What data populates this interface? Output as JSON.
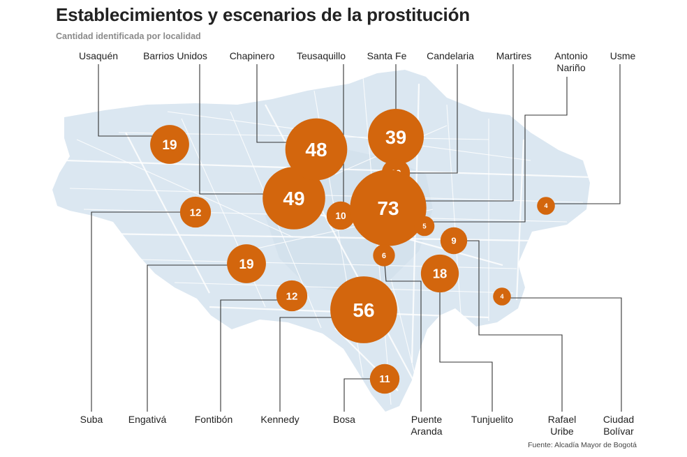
{
  "title": "Establecimientos y escenarios de la prostitución",
  "subtitle": "Cantidad identificada por localidad",
  "source": "Fuente: Alcadía Mayor de Bogotá",
  "colors": {
    "bubble": "#d3660d",
    "map": "#dbe7f1",
    "streets": "#ffffff",
    "leader": "#333333",
    "text": "#222222"
  },
  "chart_data": {
    "type": "bubble-map",
    "title": "Establecimientos y escenarios de la prostitución",
    "subtitle": "Cantidad identificada por localidad",
    "series": [
      {
        "localidad": "Usaquén",
        "value": 19
      },
      {
        "localidad": "Barrios Unidos",
        "value": 49
      },
      {
        "localidad": "Chapinero",
        "value": 48
      },
      {
        "localidad": "Teusaquillo",
        "value": 10
      },
      {
        "localidad": "Santa Fe",
        "value": 39
      },
      {
        "localidad": "Candelaria",
        "value": 10
      },
      {
        "localidad": "Martires",
        "value": 73
      },
      {
        "localidad": "Antonio Nariño",
        "value": 5
      },
      {
        "localidad": "Usme",
        "value": 4
      },
      {
        "localidad": "Suba",
        "value": 12
      },
      {
        "localidad": "Engativá",
        "value": 19
      },
      {
        "localidad": "Fontibón",
        "value": 12
      },
      {
        "localidad": "Kennedy",
        "value": 56
      },
      {
        "localidad": "Bosa",
        "value": 11
      },
      {
        "localidad": "Puente Aranda",
        "value": 6
      },
      {
        "localidad": "Tunjuelito",
        "value": 18
      },
      {
        "localidad": "Rafael Uribe",
        "value": 9
      },
      {
        "localidad": "Ciudad Bolívar",
        "value": 4
      }
    ],
    "labels_top": [
      "Usaquén",
      "Barrios Unidos",
      "Chapinero",
      "Teusaquillo",
      "Santa Fe",
      "Candelaria",
      "Martires",
      "Antonio Nariño",
      "Usme"
    ],
    "labels_bottom": [
      "Suba",
      "Engativá",
      "Fontibón",
      "Kennedy",
      "Bosa",
      "Puente Aranda",
      "Tunjuelito",
      "Rafael Uribe",
      "Ciudad Bolívar"
    ]
  }
}
